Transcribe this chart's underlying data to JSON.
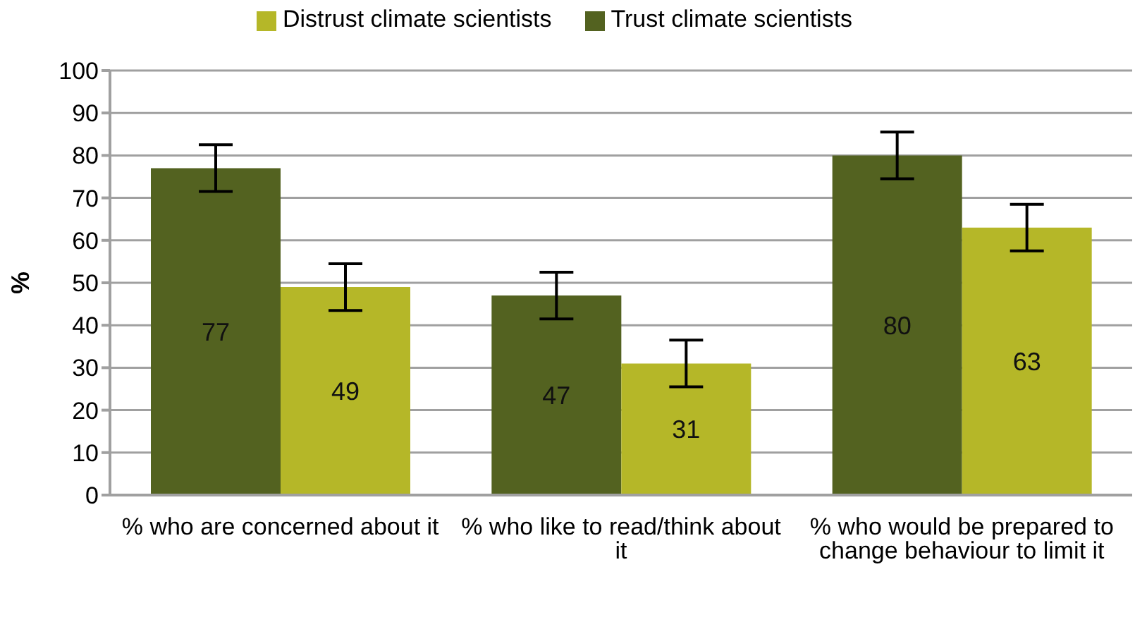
{
  "chart_data": {
    "type": "bar",
    "ylabel": "%",
    "categories": [
      "% who are concerned about it",
      "% who like to read/think about it",
      "% who would be prepared to change behaviour to limit it"
    ],
    "series": [
      {
        "name": "Trust climate scientists",
        "color": "#536220",
        "values": [
          77,
          47,
          80
        ],
        "errors": [
          5.5,
          5.5,
          5.5
        ]
      },
      {
        "name": "Distrust climate scientists",
        "color": "#b5b728",
        "values": [
          49,
          31,
          63
        ],
        "errors": [
          5.5,
          5.5,
          5.5
        ]
      }
    ],
    "ylim": [
      0,
      100
    ],
    "yticks": [
      0,
      10,
      20,
      30,
      40,
      50,
      60,
      70,
      80,
      90,
      100
    ],
    "grid": "y",
    "legend": "top",
    "data_labels": true
  }
}
